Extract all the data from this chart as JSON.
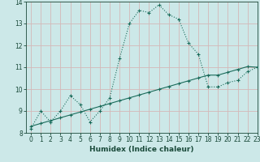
{
  "xlabel": "Humidex (Indice chaleur)",
  "bg_color": "#cce8e8",
  "grid_color": "#d4b8b8",
  "line_color": "#1a6b5a",
  "x_curve": [
    0,
    1,
    2,
    3,
    4,
    5,
    6,
    7,
    8,
    9,
    10,
    11,
    12,
    13,
    14,
    15,
    16,
    17,
    18,
    19,
    20,
    21,
    22,
    23
  ],
  "y_curve": [
    8.2,
    9.0,
    8.5,
    9.0,
    9.7,
    9.3,
    8.5,
    9.0,
    9.6,
    11.4,
    13.0,
    13.6,
    13.5,
    13.85,
    13.4,
    13.2,
    12.1,
    11.6,
    10.1,
    10.1,
    10.3,
    10.4,
    10.8,
    11.0
  ],
  "x_line": [
    0,
    1,
    2,
    3,
    4,
    5,
    6,
    7,
    8,
    9,
    10,
    11,
    12,
    13,
    14,
    15,
    16,
    17,
    18,
    19,
    20,
    21,
    22,
    23
  ],
  "y_line": [
    8.3,
    8.43,
    8.56,
    8.69,
    8.82,
    8.95,
    9.08,
    9.21,
    9.34,
    9.47,
    9.6,
    9.73,
    9.86,
    9.99,
    10.12,
    10.25,
    10.38,
    10.51,
    10.64,
    10.64,
    10.77,
    10.9,
    11.03,
    11.0
  ],
  "ylim": [
    8,
    14
  ],
  "xlim": [
    -0.5,
    23
  ],
  "yticks": [
    8,
    9,
    10,
    11,
    12,
    13,
    14
  ],
  "xticks": [
    0,
    1,
    2,
    3,
    4,
    5,
    6,
    7,
    8,
    9,
    10,
    11,
    12,
    13,
    14,
    15,
    16,
    17,
    18,
    19,
    20,
    21,
    22,
    23
  ]
}
